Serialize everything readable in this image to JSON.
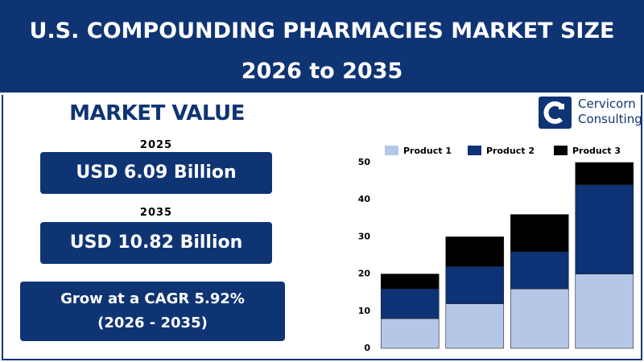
{
  "header": {
    "title_lines": [
      "U.S. COMPOUNDING PHARMACIES MARKET SIZE",
      "2026 to 2035"
    ]
  },
  "panel": {
    "heading": "MARKET VALUE",
    "items": [
      {
        "year": "2025",
        "value": "USD 6.09 Billion"
      },
      {
        "year": "2035",
        "value": "USD 10.82 Billion"
      }
    ],
    "cagr_lines": [
      "Grow at a CAGR 5.92%",
      "(2026 - 2035)"
    ]
  },
  "logo": {
    "lines": [
      "Cervicorn",
      "Consulting"
    ]
  },
  "chart_data": {
    "type": "stacked_bar",
    "categories": [
      null,
      null,
      null,
      null
    ],
    "series": [
      {
        "name": "Product 1",
        "color": "#b4c7e7",
        "values": [
          8,
          12,
          16,
          20
        ]
      },
      {
        "name": "Product 2",
        "color": "#0d3275",
        "values": [
          8,
          10,
          10,
          24
        ]
      },
      {
        "name": "Product 3",
        "color": "#000000",
        "values": [
          4,
          8,
          10,
          6
        ]
      }
    ],
    "ylim": [
      0,
      50
    ],
    "yticks": [
      0,
      10,
      20,
      30,
      40,
      50
    ],
    "grid": false,
    "legend": "top"
  }
}
